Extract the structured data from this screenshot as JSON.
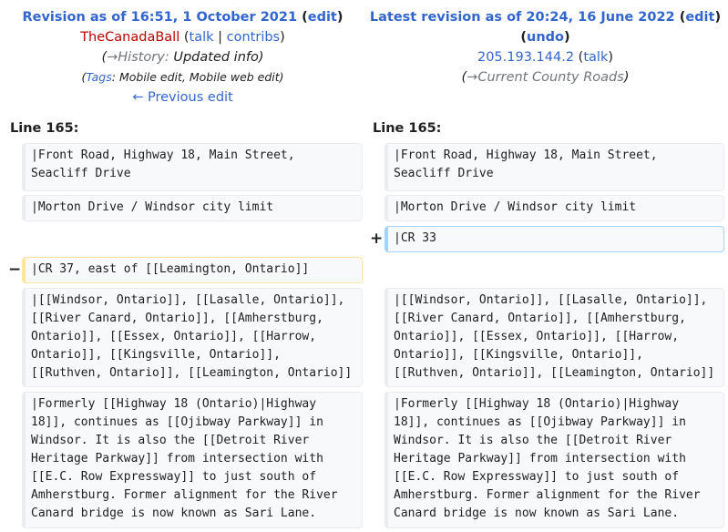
{
  "left_header": {
    "revision_title": "Revision as of 16:51, 1 October 2021",
    "edit_label": "edit",
    "user": "TheCanadaBall",
    "talk_label": "talk",
    "contribs_label": "contribs",
    "summary_arrow": "→",
    "summary_section": "History:",
    "summary_text": "Updated info",
    "tags_label": "Tags",
    "tags_text": ": Mobile edit, Mobile web edit",
    "prev_link": "← Previous edit"
  },
  "right_header": {
    "revision_title": "Latest revision as of 20:24, 16 June 2022",
    "edit_label": "edit",
    "undo_label": "undo",
    "user": "205.193.144.2",
    "talk_label": "talk",
    "summary_arrow": "→",
    "summary_section": "Current County Roads"
  },
  "left_line_label": "Line 165:",
  "right_line_label": "Line 165:",
  "markers": {
    "deleted": "−",
    "added": "+"
  },
  "rows": {
    "context1": "|Front Road, Highway 18, Main Street, Seacliff Drive",
    "context2": "|Morton Drive / Windsor city limit",
    "added": "|CR 33",
    "deleted": "|CR 37, east of [[Leamington, Ontario]]",
    "context3": "|[[Windsor, Ontario]], [[Lasalle, Ontario]], [[River Canard, Ontario]], [[Amherstburg, Ontario]], [[Essex, Ontario]], [[Harrow, Ontario]], [[Kingsville, Ontario]], [[Ruthven, Ontario]], [[Leamington, Ontario]]",
    "context4": "|Formerly [[Highway 18 (Ontario)|Highway 18]], continues as [[Ojibway Parkway]] in Windsor. It is also the [[Detroit River Heritage Parkway]] from intersection with [[E.C. Row Expressway]] to just south of Amherstburg. Former alignment for the River Canard bridge is now known as Sari Lane."
  }
}
